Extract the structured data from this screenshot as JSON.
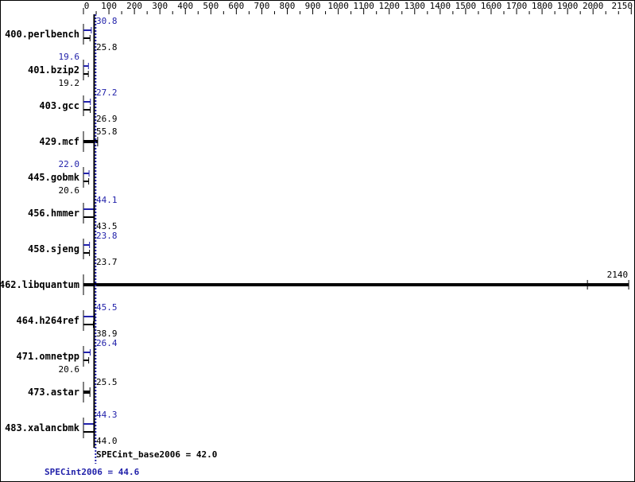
{
  "chart_data": {
    "type": "bar",
    "orientation": "horizontal",
    "xlim": [
      0,
      2150
    ],
    "x_tick_labels": [
      "0",
      "100",
      "200",
      "300",
      "400",
      "500",
      "600",
      "700",
      "800",
      "900",
      "1000",
      "1100",
      "1200",
      "1300",
      "1400",
      "1500",
      "1600",
      "1700",
      "1800",
      "1900",
      "2000",
      "2150"
    ],
    "categories": [
      "400.perlbench",
      "401.bzip2",
      "403.gcc",
      "429.mcf",
      "445.gobmk",
      "456.hmmer",
      "458.sjeng",
      "462.libquantum",
      "464.h264ref",
      "471.omnetpp",
      "473.astar",
      "483.xalancbmk"
    ],
    "series": [
      {
        "name": "SPECint2006",
        "color": "#2222aa",
        "values": [
          30.8,
          19.6,
          27.2,
          null,
          22.0,
          44.1,
          23.8,
          null,
          45.5,
          26.4,
          null,
          44.3
        ]
      },
      {
        "name": "SPECint_base2006",
        "color": "#000000",
        "values": [
          25.8,
          19.2,
          26.9,
          55.8,
          20.6,
          43.5,
          23.7,
          2140,
          38.9,
          20.6,
          25.5,
          44.0
        ]
      }
    ],
    "libquantum_run_mark": 1978,
    "base_mean": {
      "label": "SPECint_base2006 = 42.0",
      "value": 42.0
    },
    "peak_mean": {
      "label": "SPECint2006 = 44.6",
      "value": 44.6
    }
  }
}
